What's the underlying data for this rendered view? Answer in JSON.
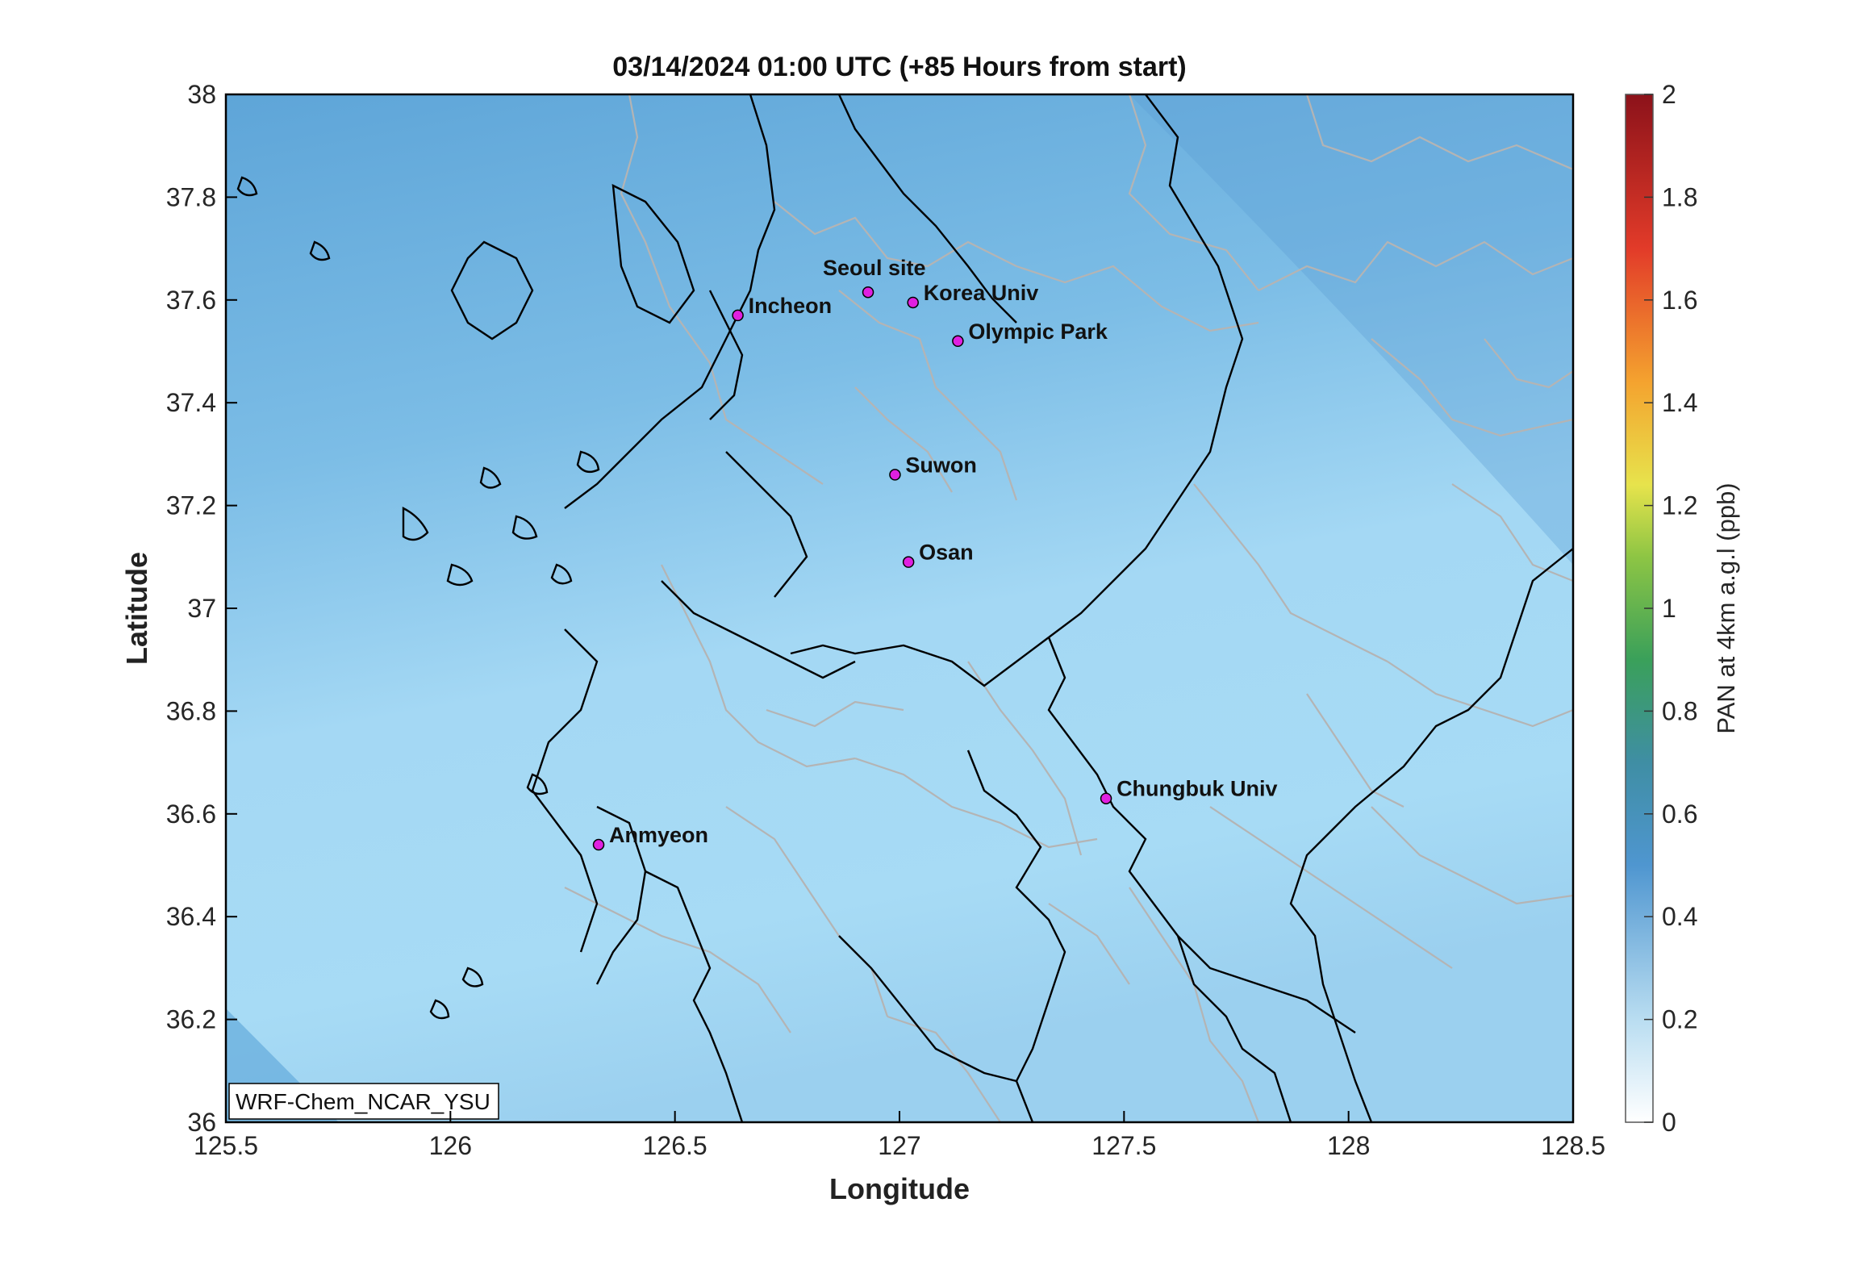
{
  "title": "03/14/2024 01:00 UTC (+85 Hours from start)",
  "model_label": "WRF-Chem_NCAR_YSU",
  "map": {
    "xlabel": "Longitude",
    "ylabel": "Latitude",
    "xlim": [
      125.5,
      128.5
    ],
    "ylim": [
      36,
      38
    ],
    "xticks": [
      "125.5",
      "126",
      "126.5",
      "127",
      "127.5",
      "128",
      "128.5"
    ],
    "yticks": [
      "38",
      "37.8",
      "37.6",
      "37.4",
      "37.2",
      "37",
      "36.8",
      "36.6",
      "36.4",
      "36.2",
      "36"
    ],
    "sites": [
      {
        "name": "Seoul site",
        "lon": 126.93,
        "lat": 37.615
      },
      {
        "name": "Korea Univ",
        "lon": 127.03,
        "lat": 37.595
      },
      {
        "name": "Incheon",
        "lon": 126.64,
        "lat": 37.57
      },
      {
        "name": "Olympic Park",
        "lon": 127.13,
        "lat": 37.52
      },
      {
        "name": "Suwon",
        "lon": 126.99,
        "lat": 37.26
      },
      {
        "name": "Osan",
        "lon": 127.02,
        "lat": 37.09
      },
      {
        "name": "Chungbuk Univ",
        "lon": 127.46,
        "lat": 36.63
      },
      {
        "name": "Anmyeon",
        "lon": 126.33,
        "lat": 36.54
      }
    ],
    "field_color_low": "#a9ddf5",
    "field_color_high": "#5fa6d8",
    "marker_color": "#e020e0",
    "coastline_color": "#000000",
    "boundary_color": "#b4b4b4"
  },
  "colorbar": {
    "label": "PAN at 4km a.g.l (ppb)",
    "ticks": [
      "2",
      "1.8",
      "1.6",
      "1.4",
      "1.2",
      "1",
      "0.8",
      "0.6",
      "0.4",
      "0.2",
      "0"
    ],
    "range": [
      0,
      2
    ],
    "stops": [
      "#ffffff",
      "#b7dcf0",
      "#4b93cf",
      "#3a9e6e",
      "#7dc243",
      "#ece64a",
      "#f39a2d",
      "#e2342a",
      "#8b1018"
    ]
  }
}
